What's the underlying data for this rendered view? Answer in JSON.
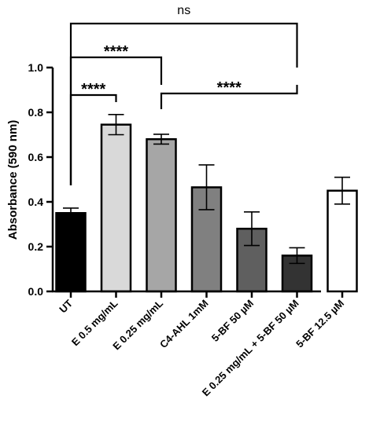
{
  "chart_data": {
    "type": "bar",
    "title": "",
    "xlabel": "",
    "ylabel": "Absorbance (590 nm)",
    "ylim": [
      0,
      1.0
    ],
    "yticks": [
      "0.0",
      "0.2",
      "0.4",
      "0.6",
      "0.8",
      "1.0"
    ],
    "categories": [
      "UT",
      "E 0.5 mg/mL",
      "E 0.25 mg/mL",
      "C4-AHL 1mM",
      "5-BF 50 µM",
      "E 0.25 mg/mL + 5-BF 50 µM",
      "5-BF 12.5 µM"
    ],
    "values": [
      0.35,
      0.745,
      0.68,
      0.465,
      0.28,
      0.16,
      0.45
    ],
    "errors": [
      0.022,
      0.045,
      0.022,
      0.1,
      0.075,
      0.035,
      0.06
    ],
    "bar_colors": [
      "#000000",
      "#d9d9d9",
      "#a6a6a6",
      "#808080",
      "#5f5f5f",
      "#333333",
      "#ffffff"
    ],
    "comparisons": [
      {
        "from": 0,
        "to": 1,
        "label": "****"
      },
      {
        "from": 0,
        "to": 2,
        "label": "****"
      },
      {
        "from": 0,
        "to": 5,
        "label": "ns"
      },
      {
        "from": 2,
        "to": 5,
        "label": "****"
      }
    ]
  }
}
